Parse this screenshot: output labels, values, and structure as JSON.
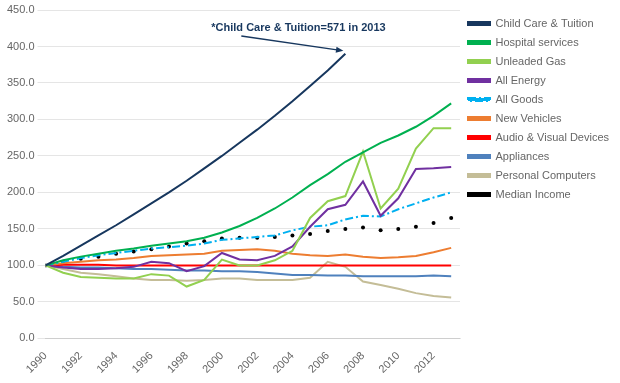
{
  "chart_data": {
    "type": "line",
    "annotations": [
      "*Child Care & Tuition=571 in 2013"
    ],
    "x": [
      1990,
      1991,
      1992,
      1993,
      1994,
      1995,
      1996,
      1997,
      1998,
      1999,
      2000,
      2001,
      2002,
      2003,
      2004,
      2005,
      2006,
      2007,
      2008,
      2009,
      2010,
      2011,
      2012,
      2013
    ],
    "series": [
      {
        "name": "Child Care & Tuition",
        "color": "#17375E",
        "line_style": "solid",
        "values": [
          100,
          113,
          127,
          141,
          155,
          170,
          185,
          200,
          216,
          233,
          250,
          268,
          286,
          305,
          325,
          346,
          367,
          390,
          null,
          null,
          null,
          null,
          null,
          null
        ]
      },
      {
        "name": "Hospital services",
        "color": "#00B050",
        "line_style": "solid",
        "values": [
          100,
          107,
          112,
          116,
          120,
          123,
          127,
          130,
          133,
          138,
          145,
          154,
          165,
          178,
          193,
          210,
          225,
          242,
          255,
          268,
          278,
          290,
          305,
          322
        ]
      },
      {
        "name": "Unleaded Gas",
        "color": "#92D050",
        "line_style": "solid",
        "values": [
          100,
          90,
          84,
          83,
          82,
          82,
          88,
          86,
          71,
          80,
          108,
          100,
          100,
          107,
          120,
          165,
          188,
          195,
          256,
          178,
          205,
          260,
          288,
          288
        ]
      },
      {
        "name": "All Energy",
        "color": "#7030A0",
        "line_style": "solid",
        "values": [
          100,
          97,
          95,
          95,
          96,
          98,
          105,
          103,
          92,
          99,
          117,
          108,
          107,
          113,
          126,
          153,
          177,
          183,
          215,
          168,
          192,
          232,
          233,
          235
        ]
      },
      {
        "name": "All Goods",
        "color": "#00B0F0",
        "line_style": "dashdot",
        "values": [
          100,
          105,
          110,
          114,
          117,
          120,
          123,
          125,
          127,
          130,
          135,
          137,
          139,
          141,
          148,
          153,
          155,
          163,
          168,
          167,
          177,
          185,
          193,
          200
        ]
      },
      {
        "name": "New Vehicles",
        "color": "#ED7D31",
        "line_style": "solid",
        "values": [
          100,
          103,
          105,
          107,
          108,
          110,
          113,
          114,
          115,
          116,
          120,
          121,
          122,
          120,
          116,
          114,
          113,
          115,
          112,
          110,
          111,
          113,
          118,
          124
        ]
      },
      {
        "name": "Audio & Visual Devices",
        "color": "#FF0000",
        "line_style": "solid",
        "values": [
          100,
          101,
          101,
          101,
          100,
          100,
          100,
          100,
          100,
          100,
          100,
          100,
          100,
          100,
          100,
          100,
          100,
          100,
          100,
          100,
          100,
          100,
          100,
          100
        ]
      },
      {
        "name": "Appliances",
        "color": "#4F81BD",
        "line_style": "solid",
        "values": [
          100,
          98,
          97,
          97,
          96,
          95,
          95,
          94,
          93,
          93,
          92,
          92,
          91,
          89,
          87,
          87,
          86,
          86,
          85,
          85,
          85,
          85,
          86,
          85
        ]
      },
      {
        "name": "Personal Computers",
        "color": "#C4BD97",
        "line_style": "solid",
        "values": [
          100,
          95,
          90,
          88,
          85,
          82,
          80,
          80,
          79,
          80,
          82,
          82,
          80,
          80,
          80,
          83,
          105,
          98,
          78,
          73,
          68,
          62,
          58,
          56
        ]
      },
      {
        "name": "Median Income",
        "color": "#000000",
        "line_style": "none",
        "marker": "dot",
        "values": [
          100,
          105,
          109,
          112,
          116,
          119,
          122,
          126,
          130,
          133,
          137,
          138,
          138,
          139,
          141,
          143,
          147,
          150,
          152,
          148,
          150,
          153,
          158,
          165
        ]
      }
    ],
    "xlim": [
      1990,
      2013.5
    ],
    "xticks": [
      1990,
      1992,
      1994,
      1996,
      1998,
      2000,
      2002,
      2004,
      2006,
      2008,
      2010,
      2012
    ],
    "ylim": [
      0,
      450
    ],
    "yticks": [
      {
        "value": 0,
        "label": "0.0"
      },
      {
        "value": 50,
        "label": "50.0"
      },
      {
        "value": 100,
        "label": "100.0"
      },
      {
        "value": 150,
        "label": "150.0"
      },
      {
        "value": 200,
        "label": "200.0"
      },
      {
        "value": 250,
        "label": "250.0"
      },
      {
        "value": 300,
        "label": "300.0"
      },
      {
        "value": 350,
        "label": "350.0"
      },
      {
        "value": 400,
        "label": "400.0"
      },
      {
        "value": 450,
        "label": "450.0"
      }
    ],
    "grid": "y",
    "legend": "right"
  }
}
